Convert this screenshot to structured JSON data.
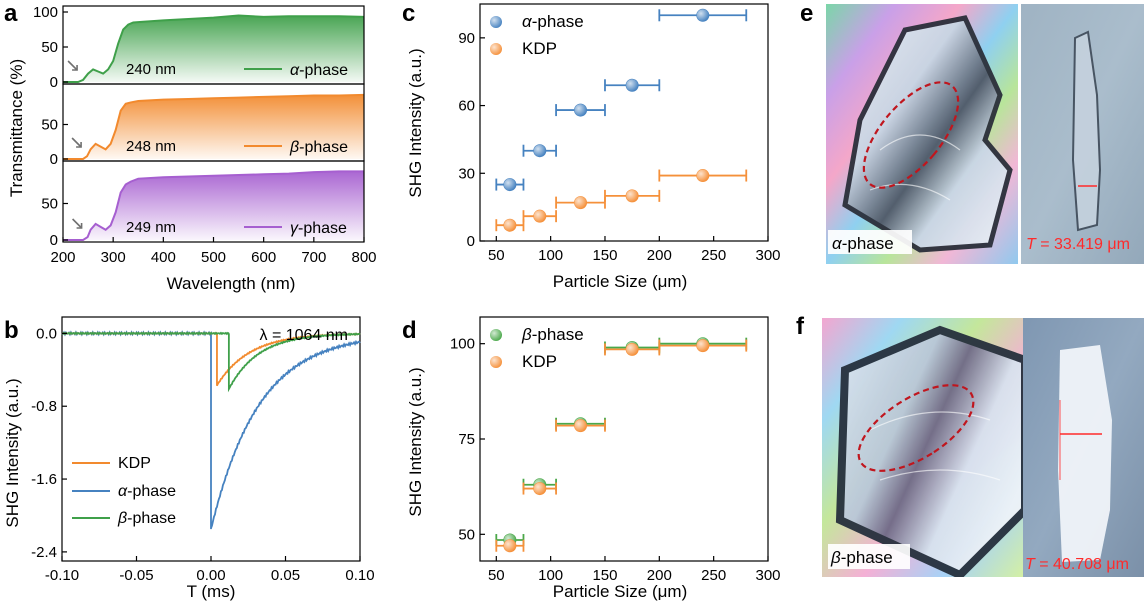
{
  "panel_letters": {
    "a": "a",
    "b": "b",
    "c": "c",
    "d": "d",
    "e": "e",
    "f": "f"
  },
  "colors": {
    "alpha_green": "#3fa04a",
    "beta_orange": "#f28a2e",
    "gamma_purple": "#a65fd0",
    "blue": "#4682c0",
    "kdp_orange": "#f5903a",
    "green_marker": "#4aa84a",
    "dashed_ellipse": "#c0161e",
    "measure_red": "#ff2a2a"
  },
  "chart_data": [
    {
      "id": "a",
      "type": "area",
      "xlabel": "Wavelength (nm)",
      "ylabel": "Transmittance (%)",
      "xlim": [
        200,
        800
      ],
      "xticks": [
        "200",
        "300",
        "400",
        "500",
        "600",
        "700",
        "800"
      ],
      "stacks": [
        {
          "name_prefix": "α",
          "name_suffix": "-phase",
          "color": "#3fa04a",
          "cutoff_label": "240 nm",
          "ylim": [
            0,
            100
          ],
          "yticks": [
            "0",
            "50",
            "100"
          ],
          "x": [
            200,
            230,
            240,
            250,
            260,
            270,
            280,
            290,
            300,
            310,
            320,
            330,
            340,
            360,
            400,
            450,
            500,
            550,
            600,
            650,
            700,
            750,
            800
          ],
          "y": [
            0,
            0,
            3,
            12,
            18,
            15,
            12,
            18,
            30,
            55,
            75,
            82,
            85,
            86,
            88,
            90,
            92,
            95,
            93,
            94,
            94,
            94,
            93
          ]
        },
        {
          "name_prefix": "β",
          "name_suffix": "-phase",
          "color": "#f28a2e",
          "cutoff_label": "248 nm",
          "ylim": [
            0,
            100
          ],
          "yticks": [
            "0",
            "50"
          ],
          "x": [
            200,
            240,
            248,
            255,
            265,
            275,
            285,
            295,
            305,
            315,
            325,
            335,
            350,
            400,
            450,
            500,
            550,
            600,
            650,
            700,
            750,
            800
          ],
          "y": [
            0,
            0,
            4,
            14,
            22,
            18,
            14,
            22,
            42,
            70,
            80,
            82,
            84,
            86,
            87,
            88,
            89,
            90,
            91,
            92,
            92,
            93
          ]
        },
        {
          "name_prefix": "γ",
          "name_suffix": "-phase",
          "color": "#a65fd0",
          "cutoff_label": "249 nm",
          "ylim": [
            0,
            100
          ],
          "yticks": [
            "0",
            "50"
          ],
          "x": [
            200,
            240,
            249,
            255,
            265,
            275,
            285,
            295,
            305,
            315,
            325,
            335,
            350,
            400,
            450,
            500,
            550,
            600,
            650,
            700,
            750,
            800
          ],
          "y": [
            0,
            0,
            4,
            14,
            22,
            18,
            14,
            20,
            38,
            65,
            76,
            80,
            84,
            86,
            87,
            88,
            89,
            90,
            91,
            93,
            94,
            94
          ]
        }
      ]
    },
    {
      "id": "b",
      "type": "line",
      "annotation": "λ = 1064 nm",
      "xlabel": "T (ms)",
      "ylabel": "SHG Intensity (a.u.)",
      "xlim": [
        -0.1,
        0.1
      ],
      "ylim": [
        -2.5,
        0.18
      ],
      "xticks": [
        "-0.10",
        "-0.05",
        "0.00",
        "0.05",
        "0.10"
      ],
      "yticks": [
        "0.0",
        "-0.8",
        "-1.6",
        "-2.4"
      ],
      "series": [
        {
          "name": "KDP",
          "color": "#f28a2e",
          "t0": 0.004,
          "peak": -0.57,
          "tau": 0.022
        },
        {
          "name_prefix": "α",
          "name_suffix": "-phase",
          "color": "#4682c0",
          "t0": 0.0,
          "peak": -2.15,
          "tau": 0.032
        },
        {
          "name_prefix": "β",
          "name_suffix": "-phase",
          "color": "#3fa04a",
          "t0": 0.012,
          "peak": -0.61,
          "tau": 0.02
        }
      ]
    },
    {
      "id": "c",
      "type": "scatter",
      "xlabel": "Particle Size (μm)",
      "ylabel": "SHG Intensity (a.u.)",
      "xlim": [
        35,
        300
      ],
      "ylim": [
        0,
        105
      ],
      "xticks": [
        50,
        100,
        150,
        200,
        250,
        300
      ],
      "yticks": [
        0,
        30,
        60,
        90
      ],
      "legend_position": "top-left",
      "series": [
        {
          "name_prefix": "α",
          "name_suffix": "-phase",
          "color": "#4682c0",
          "points": [
            {
              "x": 62.5,
              "xmin": 50,
              "xmax": 75,
              "y": 25
            },
            {
              "x": 90,
              "xmin": 75,
              "xmax": 105,
              "y": 40
            },
            {
              "x": 127.5,
              "xmin": 105,
              "xmax": 150,
              "y": 58
            },
            {
              "x": 175,
              "xmin": 150,
              "xmax": 200,
              "y": 69
            },
            {
              "x": 240,
              "xmin": 200,
              "xmax": 280,
              "y": 100
            }
          ]
        },
        {
          "name": "KDP",
          "color": "#f5903a",
          "points": [
            {
              "x": 62.5,
              "xmin": 50,
              "xmax": 75,
              "y": 7
            },
            {
              "x": 90,
              "xmin": 75,
              "xmax": 105,
              "y": 11
            },
            {
              "x": 127.5,
              "xmin": 105,
              "xmax": 150,
              "y": 17
            },
            {
              "x": 175,
              "xmin": 150,
              "xmax": 200,
              "y": 20
            },
            {
              "x": 240,
              "xmin": 200,
              "xmax": 280,
              "y": 29
            }
          ]
        }
      ]
    },
    {
      "id": "d",
      "type": "scatter",
      "xlabel": "Particle Size (μm)",
      "ylabel": "SHG Intensity (a.u.)",
      "xlim": [
        35,
        300
      ],
      "ylim": [
        43,
        107
      ],
      "xticks": [
        50,
        100,
        150,
        200,
        250,
        300
      ],
      "yticks": [
        50,
        75,
        100
      ],
      "legend_position": "top-left",
      "series": [
        {
          "name_prefix": "β",
          "name_suffix": "-phase",
          "color": "#4aa84a",
          "points": [
            {
              "x": 62.5,
              "xmin": 50,
              "xmax": 75,
              "y": 48.5
            },
            {
              "x": 90,
              "xmin": 75,
              "xmax": 105,
              "y": 63
            },
            {
              "x": 127.5,
              "xmin": 105,
              "xmax": 150,
              "y": 79
            },
            {
              "x": 175,
              "xmin": 150,
              "xmax": 200,
              "y": 99
            },
            {
              "x": 240,
              "xmin": 200,
              "xmax": 280,
              "y": 100
            }
          ]
        },
        {
          "name": "KDP",
          "color": "#f5903a",
          "points": [
            {
              "x": 62.5,
              "xmin": 50,
              "xmax": 75,
              "y": 47
            },
            {
              "x": 90,
              "xmin": 75,
              "xmax": 105,
              "y": 62
            },
            {
              "x": 127.5,
              "xmin": 105,
              "xmax": 150,
              "y": 78.5
            },
            {
              "x": 175,
              "xmin": 150,
              "xmax": 200,
              "y": 98.5
            },
            {
              "x": 240,
              "xmin": 200,
              "xmax": 280,
              "y": 99.5
            }
          ]
        }
      ]
    }
  ],
  "photos": {
    "e": {
      "label_prefix": "α",
      "label_suffix": "-phase",
      "measure_prefix": "T",
      "measure_suffix": " = 33.419 μm"
    },
    "f": {
      "label_prefix": "β",
      "label_suffix": "-phase",
      "measure_prefix": "T",
      "measure_suffix": " = 40.708 μm"
    }
  }
}
